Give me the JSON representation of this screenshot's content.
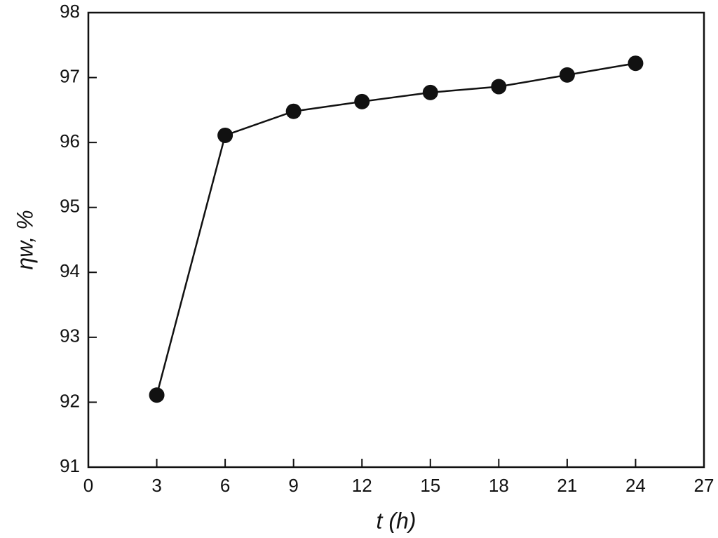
{
  "chart_data": {
    "type": "line",
    "xlabel": "t (h)",
    "ylabel": "ηw, %",
    "x": [
      3,
      6,
      9,
      12,
      15,
      18,
      21,
      24
    ],
    "series": [
      {
        "color": "#111111",
        "values": [
          92.11,
          96.11,
          96.48,
          96.63,
          96.77,
          96.86,
          97.04,
          97.22
        ]
      }
    ],
    "xlim": [
      0,
      27
    ],
    "xticks": [
      0,
      3,
      6,
      9,
      12,
      15,
      18,
      21,
      24,
      27
    ],
    "ylim": [
      91,
      98
    ],
    "yticks": [
      91,
      92,
      93,
      94,
      95,
      96,
      97,
      98
    ],
    "grid": false
  }
}
